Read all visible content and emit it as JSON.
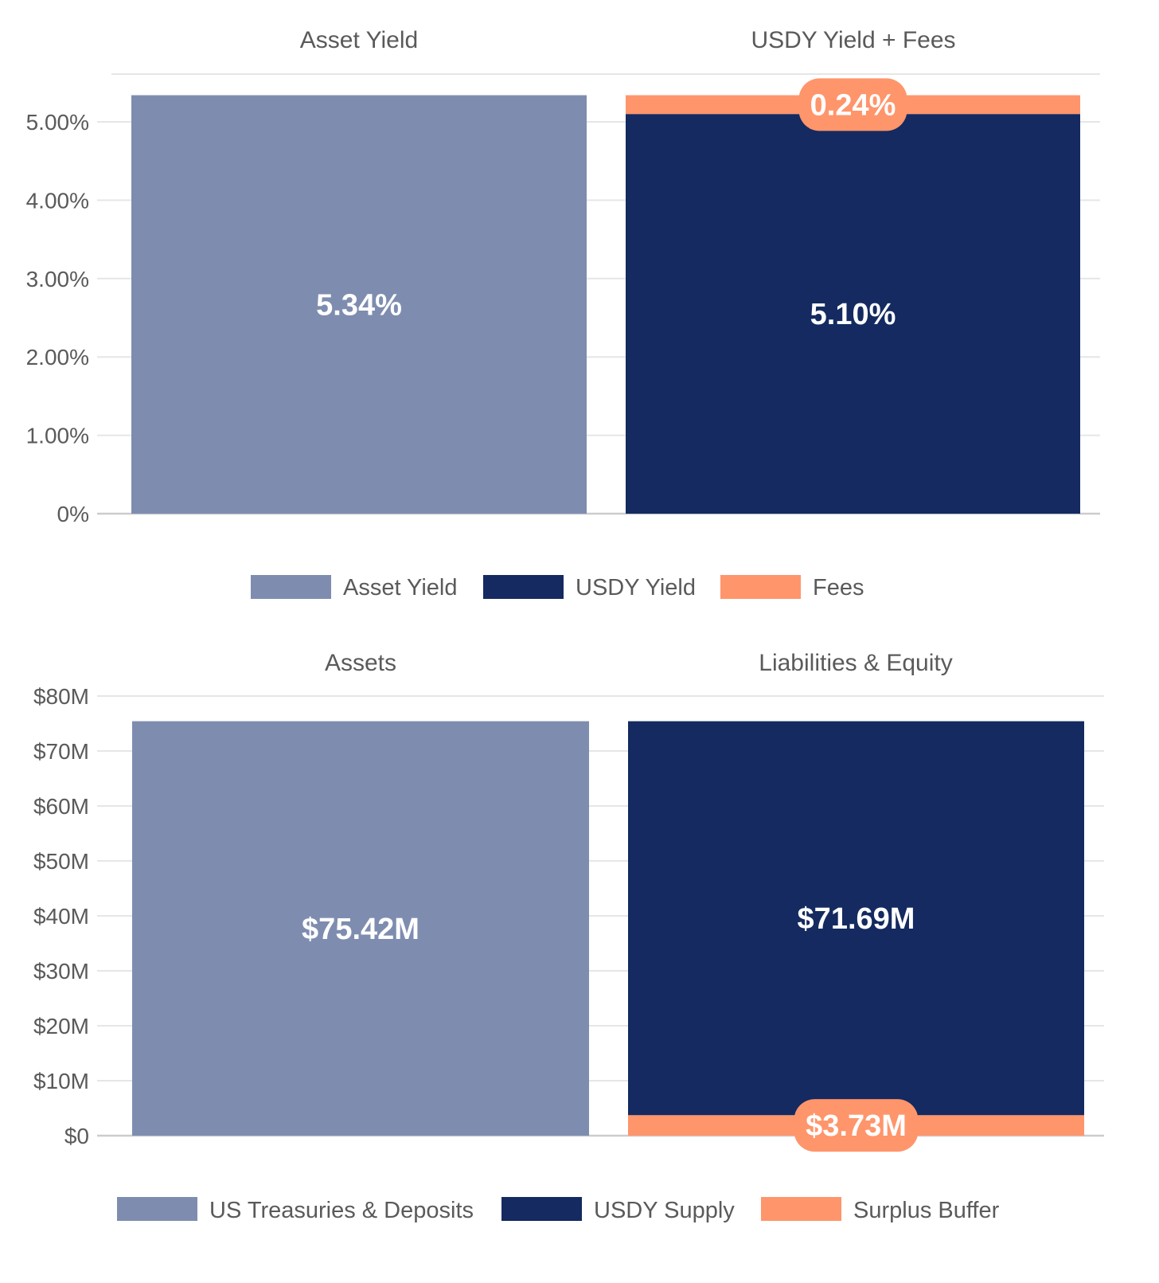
{
  "colors": {
    "asset": "#7e8daf",
    "usdy": "#142a60",
    "orange": "#ff956b",
    "grid": "#e6e6e6",
    "axis": "#cccccc"
  },
  "chart_data": [
    {
      "type": "bar",
      "stacked": true,
      "categories": [
        "Asset Yield",
        "USDY Yield + Fees"
      ],
      "series": [
        {
          "name": "Asset Yield",
          "color_key": "asset",
          "values": [
            5.34,
            0
          ]
        },
        {
          "name": "USDY Yield",
          "color_key": "usdy",
          "values": [
            0,
            5.1
          ]
        },
        {
          "name": "Fees",
          "color_key": "orange",
          "values": [
            0,
            0.24
          ]
        }
      ],
      "data_labels": [
        {
          "category": 0,
          "series": 0,
          "text": "5.34%",
          "style": "plain"
        },
        {
          "category": 1,
          "series": 1,
          "text": "5.10%",
          "style": "plain"
        },
        {
          "category": 1,
          "series": 2,
          "text": "0.24%",
          "style": "pill"
        }
      ],
      "yticks": [
        0,
        1,
        2,
        3,
        4,
        5
      ],
      "ytick_labels": [
        "0%",
        "1.00%",
        "2.00%",
        "3.00%",
        "4.00%",
        "5.00%"
      ],
      "ylim": [
        0,
        5.6
      ],
      "grid": true,
      "legend": [
        "Asset Yield",
        "USDY Yield",
        "Fees"
      ],
      "legend_position": "bottom"
    },
    {
      "type": "bar",
      "stacked": true,
      "categories": [
        "Assets",
        "Liabilities & Equity"
      ],
      "series": [
        {
          "name": "US Treasuries & Deposits",
          "color_key": "asset",
          "values": [
            75.42,
            0
          ]
        },
        {
          "name": "Surplus Buffer",
          "color_key": "orange",
          "values": [
            0,
            3.73
          ]
        },
        {
          "name": "USDY Supply",
          "color_key": "usdy",
          "values": [
            0,
            71.69
          ]
        }
      ],
      "data_labels": [
        {
          "category": 0,
          "series": 0,
          "text": "$75.42M",
          "style": "plain"
        },
        {
          "category": 1,
          "series": 2,
          "text": "$71.69M",
          "style": "plain"
        },
        {
          "category": 1,
          "series": 1,
          "text": "$3.73M",
          "style": "pill"
        }
      ],
      "yticks": [
        0,
        10,
        20,
        30,
        40,
        50,
        60,
        70,
        80
      ],
      "ytick_labels": [
        "$0",
        "$10M",
        "$20M",
        "$30M",
        "$40M",
        "$50M",
        "$60M",
        "$70M",
        "$80M"
      ],
      "ylim": [
        0,
        80
      ],
      "grid": true,
      "legend": [
        "US Treasuries & Deposits",
        "USDY Supply",
        "Surplus Buffer"
      ],
      "legend_colors": [
        "asset",
        "usdy",
        "orange"
      ],
      "legend_position": "bottom"
    }
  ]
}
